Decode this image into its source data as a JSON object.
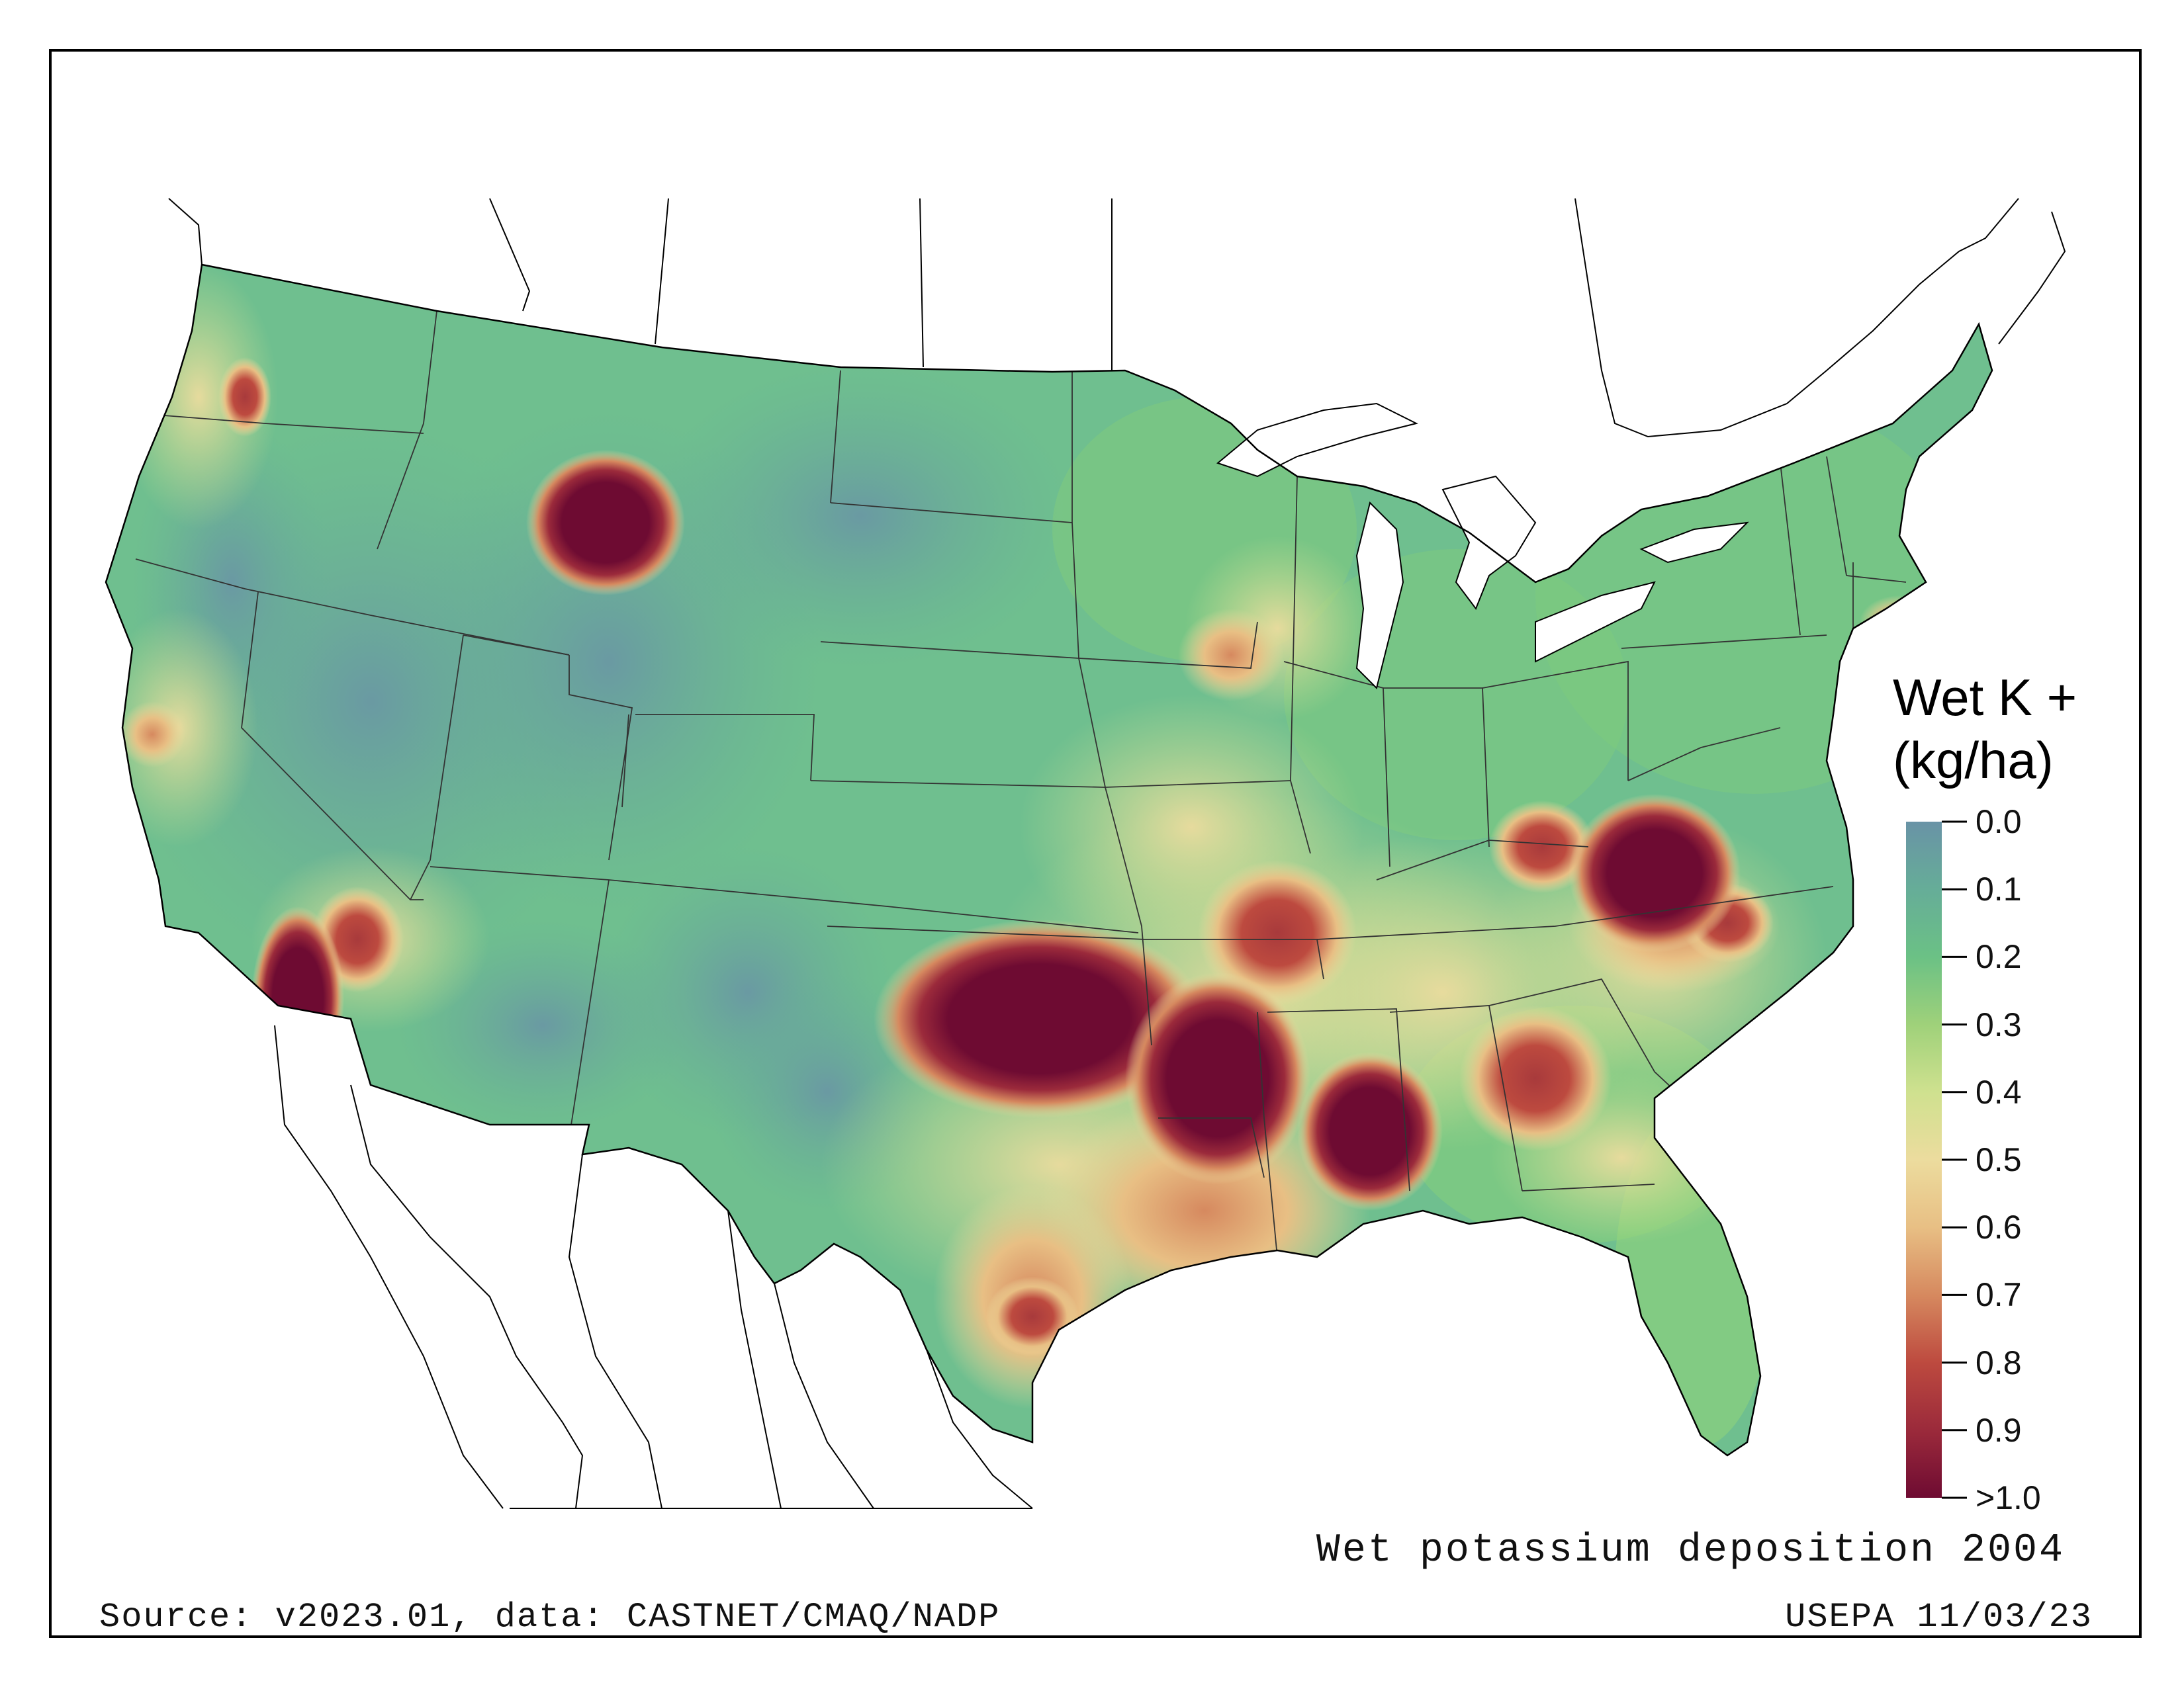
{
  "map": {
    "title": "Wet potassium deposition 2004",
    "source": "Source: v2023.01, data: CASTNET/CMAQ/NADP",
    "stamp": "USEPA 11/03/23",
    "background_color": "#6fbf8f",
    "legend": {
      "title_line1": "Wet K +",
      "title_line2": "(kg/ha)",
      "ticks": [
        "0.0",
        "0.1",
        "0.2",
        "0.3",
        "0.4",
        "0.5",
        "0.6",
        "0.7",
        "0.8",
        "0.9",
        ">1.0"
      ],
      "colors": [
        "#6993a6",
        "#66ad98",
        "#6bc185",
        "#9fd17a",
        "#cfe18f",
        "#ecdc9e",
        "#e8bf84",
        "#d6895f",
        "#bd4a3f",
        "#9b2a3b",
        "#6e0b32"
      ]
    },
    "hotspots": [
      {
        "region": "Yellowstone",
        "level": ">1.0"
      },
      {
        "region": "Southern California",
        "level": ">1.0"
      },
      {
        "region": "Oklahoma",
        "level": ">1.0"
      },
      {
        "region": "Louisiana / Arkansas",
        "level": ">1.0"
      },
      {
        "region": "Mississippi",
        "level": ">1.0"
      },
      {
        "region": "Georgia",
        "level": "0.9"
      },
      {
        "region": "Virginia / North Carolina",
        "level": ">1.0"
      },
      {
        "region": "Missouri / Arkansas",
        "level": "0.9"
      },
      {
        "region": "Houston",
        "level": "0.9"
      },
      {
        "region": "Kentucky",
        "level": "0.8"
      },
      {
        "region": "Iowa",
        "level": "0.7"
      }
    ]
  }
}
